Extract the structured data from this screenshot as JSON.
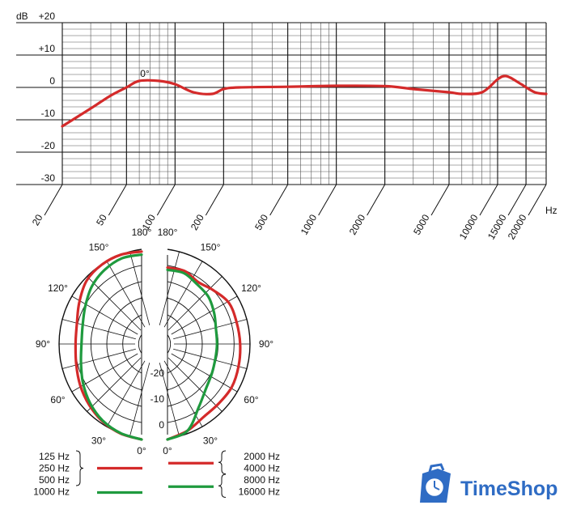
{
  "chart_data": [
    {
      "type": "line",
      "title": "",
      "xlabel": "Hz",
      "ylabel": "dB",
      "x_scale": "log",
      "xlim": [
        20,
        20000
      ],
      "ylim": [
        -30,
        20
      ],
      "grid": true,
      "y_ticks": [
        {
          "value": 20,
          "label": "+20"
        },
        {
          "value": 10,
          "label": "+10"
        },
        {
          "value": 0,
          "label": "0"
        },
        {
          "value": -10,
          "label": "-10"
        },
        {
          "value": -20,
          "label": "-20"
        },
        {
          "value": -30,
          "label": "-30"
        }
      ],
      "x_ticks": [
        {
          "value": 20,
          "label": "20"
        },
        {
          "value": 50,
          "label": "50"
        },
        {
          "value": 100,
          "label": "100"
        },
        {
          "value": 200,
          "label": "200"
        },
        {
          "value": 500,
          "label": "500"
        },
        {
          "value": 1000,
          "label": "1000"
        },
        {
          "value": 2000,
          "label": "2000"
        },
        {
          "value": 5000,
          "label": "5000"
        },
        {
          "value": 10000,
          "label": "10000"
        },
        {
          "value": 15000,
          "label": "15000"
        },
        {
          "value": 20000,
          "label": "20000"
        }
      ],
      "annotation": {
        "text": "0°",
        "x": 65,
        "y": 4
      },
      "series": [
        {
          "color": "#d42a2a",
          "points": [
            [
              20,
              -12
            ],
            [
              30,
              -6.5
            ],
            [
              40,
              -2.5
            ],
            [
              50,
              0
            ],
            [
              60,
              2
            ],
            [
              80,
              2
            ],
            [
              100,
              1
            ],
            [
              130,
              -1.5
            ],
            [
              170,
              -2
            ],
            [
              200,
              -0.5
            ],
            [
              250,
              0
            ],
            [
              500,
              0.2
            ],
            [
              1000,
              0.5
            ],
            [
              2000,
              0.4
            ],
            [
              3000,
              -0.5
            ],
            [
              5000,
              -1.5
            ],
            [
              6000,
              -2
            ],
            [
              8000,
              -1.5
            ],
            [
              10000,
              2.5
            ],
            [
              11000,
              3.5
            ],
            [
              12000,
              3
            ],
            [
              14000,
              1
            ],
            [
              17000,
              -1.5
            ],
            [
              20000,
              -2
            ]
          ]
        }
      ]
    },
    {
      "type": "polar",
      "title": "",
      "angle_labels_left": [
        "180°",
        "150°",
        "120°",
        "90°",
        "60°",
        "30°",
        "0°"
      ],
      "angle_labels_right": [
        "180°",
        "150°",
        "120°",
        "90°",
        "60°",
        "30°",
        "0°"
      ],
      "radial_labels": [
        "-20",
        "-10",
        "0"
      ],
      "radial_range_db": [
        -25,
        0
      ],
      "series": [
        {
          "side": "left",
          "color": "#d42a2a",
          "points_deg_db": [
            [
              0,
              0
            ],
            [
              15,
              -0.7
            ],
            [
              30,
              -1.5
            ],
            [
              45,
              -2.5
            ],
            [
              60,
              -3.5
            ],
            [
              75,
              -4.5
            ],
            [
              90,
              -5
            ],
            [
              105,
              -4.7
            ],
            [
              120,
              -3.2
            ],
            [
              135,
              -1.5
            ],
            [
              150,
              -1
            ],
            [
              165,
              -0.8
            ],
            [
              180,
              -0.8
            ]
          ]
        },
        {
          "side": "left",
          "color": "#1f9a3e",
          "points_deg_db": [
            [
              0,
              0
            ],
            [
              15,
              -0.8
            ],
            [
              30,
              -1.7
            ],
            [
              45,
              -3
            ],
            [
              60,
              -4.5
            ],
            [
              75,
              -6
            ],
            [
              90,
              -6.8
            ],
            [
              105,
              -6.5
            ],
            [
              120,
              -5.3
            ],
            [
              135,
              -3.7
            ],
            [
              150,
              -2.6
            ],
            [
              165,
              -1.8
            ],
            [
              180,
              -1.6
            ]
          ]
        },
        {
          "side": "right",
          "color": "#d42a2a",
          "points_deg_db": [
            [
              0,
              0
            ],
            [
              15,
              -1.5
            ],
            [
              30,
              -3
            ],
            [
              45,
              -3
            ],
            [
              60,
              -2.5
            ],
            [
              75,
              -2.7
            ],
            [
              90,
              -3
            ],
            [
              105,
              -3.3
            ],
            [
              120,
              -3.5
            ],
            [
              135,
              -5.2
            ],
            [
              150,
              -6.3
            ],
            [
              165,
              -5.2
            ],
            [
              180,
              -5
            ]
          ]
        },
        {
          "side": "right",
          "color": "#1f9a3e",
          "points_deg_db": [
            [
              0,
              0
            ],
            [
              15,
              -1.5
            ],
            [
              30,
              -6
            ],
            [
              45,
              -8.5
            ],
            [
              60,
              -9.5
            ],
            [
              75,
              -10
            ],
            [
              90,
              -10
            ],
            [
              105,
              -9.8
            ],
            [
              120,
              -8.7
            ],
            [
              135,
              -7.5
            ],
            [
              150,
              -7
            ],
            [
              165,
              -5.8
            ],
            [
              180,
              -5.6
            ]
          ]
        }
      ]
    }
  ],
  "legend": {
    "left": [
      {
        "labels": [
          "125 Hz",
          "250 Hz",
          "500 Hz"
        ],
        "color": "#d42a2a"
      },
      {
        "labels": [
          "1000 Hz"
        ],
        "color": "#1f9a3e"
      }
    ],
    "right": [
      {
        "labels": [
          "2000 Hz",
          "4000 Hz"
        ],
        "color": "#d42a2a"
      },
      {
        "labels": [
          "8000 Hz",
          "16000 Hz"
        ],
        "color": "#1f9a3e"
      }
    ]
  },
  "watermark": {
    "text": "TimeShop",
    "icon": "clock-briefcase-icon",
    "color": "#2f6cc4"
  }
}
